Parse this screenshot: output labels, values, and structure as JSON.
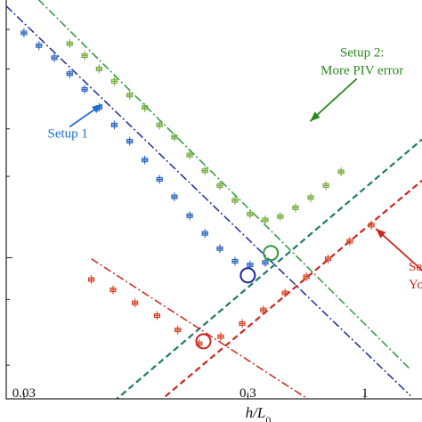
{
  "chart_data": {
    "type": "scatter",
    "title": "",
    "xlabel": "h/L₀",
    "ylabel": "",
    "xscale": "log",
    "yscale": "log",
    "xlim": [
      0.025,
      1.8
    ],
    "ylim": [
      0.003,
      0.09
    ],
    "grid": false,
    "x_ticks": [
      {
        "value": 0.03,
        "label": "0.03"
      },
      {
        "value": 0.3,
        "label": "0.3"
      },
      {
        "value": 1,
        "label": "1"
      }
    ],
    "y_ticks": [
      0.004,
      0.007,
      0.01,
      0.02,
      0.03,
      0.05,
      0.07
    ],
    "y_major_ticks": [
      0.01
    ],
    "series": [
      {
        "key": "blue",
        "color": "#1f5fbf",
        "points": [
          [
            0.03,
            0.068
          ],
          [
            0.035,
            0.061
          ],
          [
            0.041,
            0.055
          ],
          [
            0.048,
            0.048
          ],
          [
            0.056,
            0.042
          ],
          [
            0.065,
            0.036
          ],
          [
            0.076,
            0.031
          ],
          [
            0.089,
            0.027
          ],
          [
            0.104,
            0.023
          ],
          [
            0.121,
            0.0195
          ],
          [
            0.141,
            0.0168
          ],
          [
            0.165,
            0.0143
          ],
          [
            0.193,
            0.0123
          ],
          [
            0.225,
            0.0108
          ],
          [
            0.263,
            0.0097
          ],
          [
            0.307,
            0.0094
          ],
          [
            0.359,
            0.0096
          ]
        ],
        "fit_lines": [
          {
            "style": "dash-dot",
            "color": "#1a2a9e",
            "x": [
              0.025,
              1.6
            ],
            "y": [
              0.0855,
              0.00308
            ]
          }
        ],
        "marker": {
          "x": 0.3,
          "y": 0.0086,
          "color": "#1a2a9e"
        }
      },
      {
        "key": "green",
        "color": "#6fa832",
        "points": [
          [
            0.048,
            0.062
          ],
          [
            0.056,
            0.056
          ],
          [
            0.065,
            0.05
          ],
          [
            0.076,
            0.045
          ],
          [
            0.089,
            0.04
          ],
          [
            0.104,
            0.036
          ],
          [
            0.121,
            0.031
          ],
          [
            0.141,
            0.028
          ],
          [
            0.165,
            0.024
          ],
          [
            0.193,
            0.021
          ],
          [
            0.225,
            0.0185
          ],
          [
            0.263,
            0.0163
          ],
          [
            0.307,
            0.0145
          ],
          [
            0.359,
            0.0138
          ],
          [
            0.419,
            0.0142
          ],
          [
            0.49,
            0.0153
          ],
          [
            0.573,
            0.0167
          ],
          [
            0.67,
            0.0185
          ],
          [
            0.783,
            0.0208
          ]
        ],
        "fit_lines": [
          {
            "style": "dash-dot",
            "color": "#2a9a3a",
            "x": [
              0.025,
              1.6
            ],
            "y": [
              0.1187,
              0.00385
            ]
          },
          {
            "style": "dashed",
            "color": "#1f7a6a",
            "x": [
              0.07,
              1.8
            ],
            "y": [
              0.00278,
              0.0274
            ]
          }
        ],
        "marker": {
          "x": 0.38,
          "y": 0.0104,
          "color": "#2a9a3a"
        }
      },
      {
        "key": "red",
        "color": "#d2401e",
        "points": [
          [
            0.06,
            0.0083
          ],
          [
            0.075,
            0.0076
          ],
          [
            0.094,
            0.0068
          ],
          [
            0.118,
            0.0061
          ],
          [
            0.146,
            0.0054
          ],
          [
            0.182,
            0.0048
          ],
          [
            0.227,
            0.0051
          ],
          [
            0.283,
            0.0057
          ],
          [
            0.352,
            0.0064
          ],
          [
            0.44,
            0.0074
          ],
          [
            0.548,
            0.0085
          ],
          [
            0.685,
            0.0099
          ],
          [
            0.856,
            0.0115
          ],
          [
            1.07,
            0.0132
          ]
        ],
        "fit_lines": [
          {
            "style": "dash-dot",
            "color": "#c8281e",
            "x": [
              0.06,
              0.58
            ],
            "y": [
              0.0099,
              0.00293
            ]
          },
          {
            "style": "dashed",
            "color": "#c8281e",
            "x": [
              0.11,
              1.8
            ],
            "y": [
              0.00275,
              0.0193
            ]
          }
        ],
        "marker": {
          "x": 0.19,
          "y": 0.0049,
          "color": "#c8281e"
        }
      }
    ],
    "annotations": [
      {
        "key": "setup1",
        "lines": [
          "Setup 1"
        ],
        "color": "#1f6fd0",
        "arrow_from": [
          0.048,
          0.0305
        ],
        "arrow_to": [
          0.067,
          0.037
        ]
      },
      {
        "key": "setup2",
        "lines": [
          "Setup 2:",
          "More PIV error"
        ],
        "color": "#2a8a1e",
        "arrow_from": [
          0.92,
          0.046
        ],
        "arrow_to": [
          0.57,
          0.032
        ]
      },
      {
        "key": "setup3",
        "lines": [
          "Set",
          "Young"
        ],
        "color": "#c8281e",
        "arrow_from": [
          2.0,
          0.0083
        ],
        "arrow_to": [
          1.12,
          0.0128
        ]
      }
    ]
  }
}
